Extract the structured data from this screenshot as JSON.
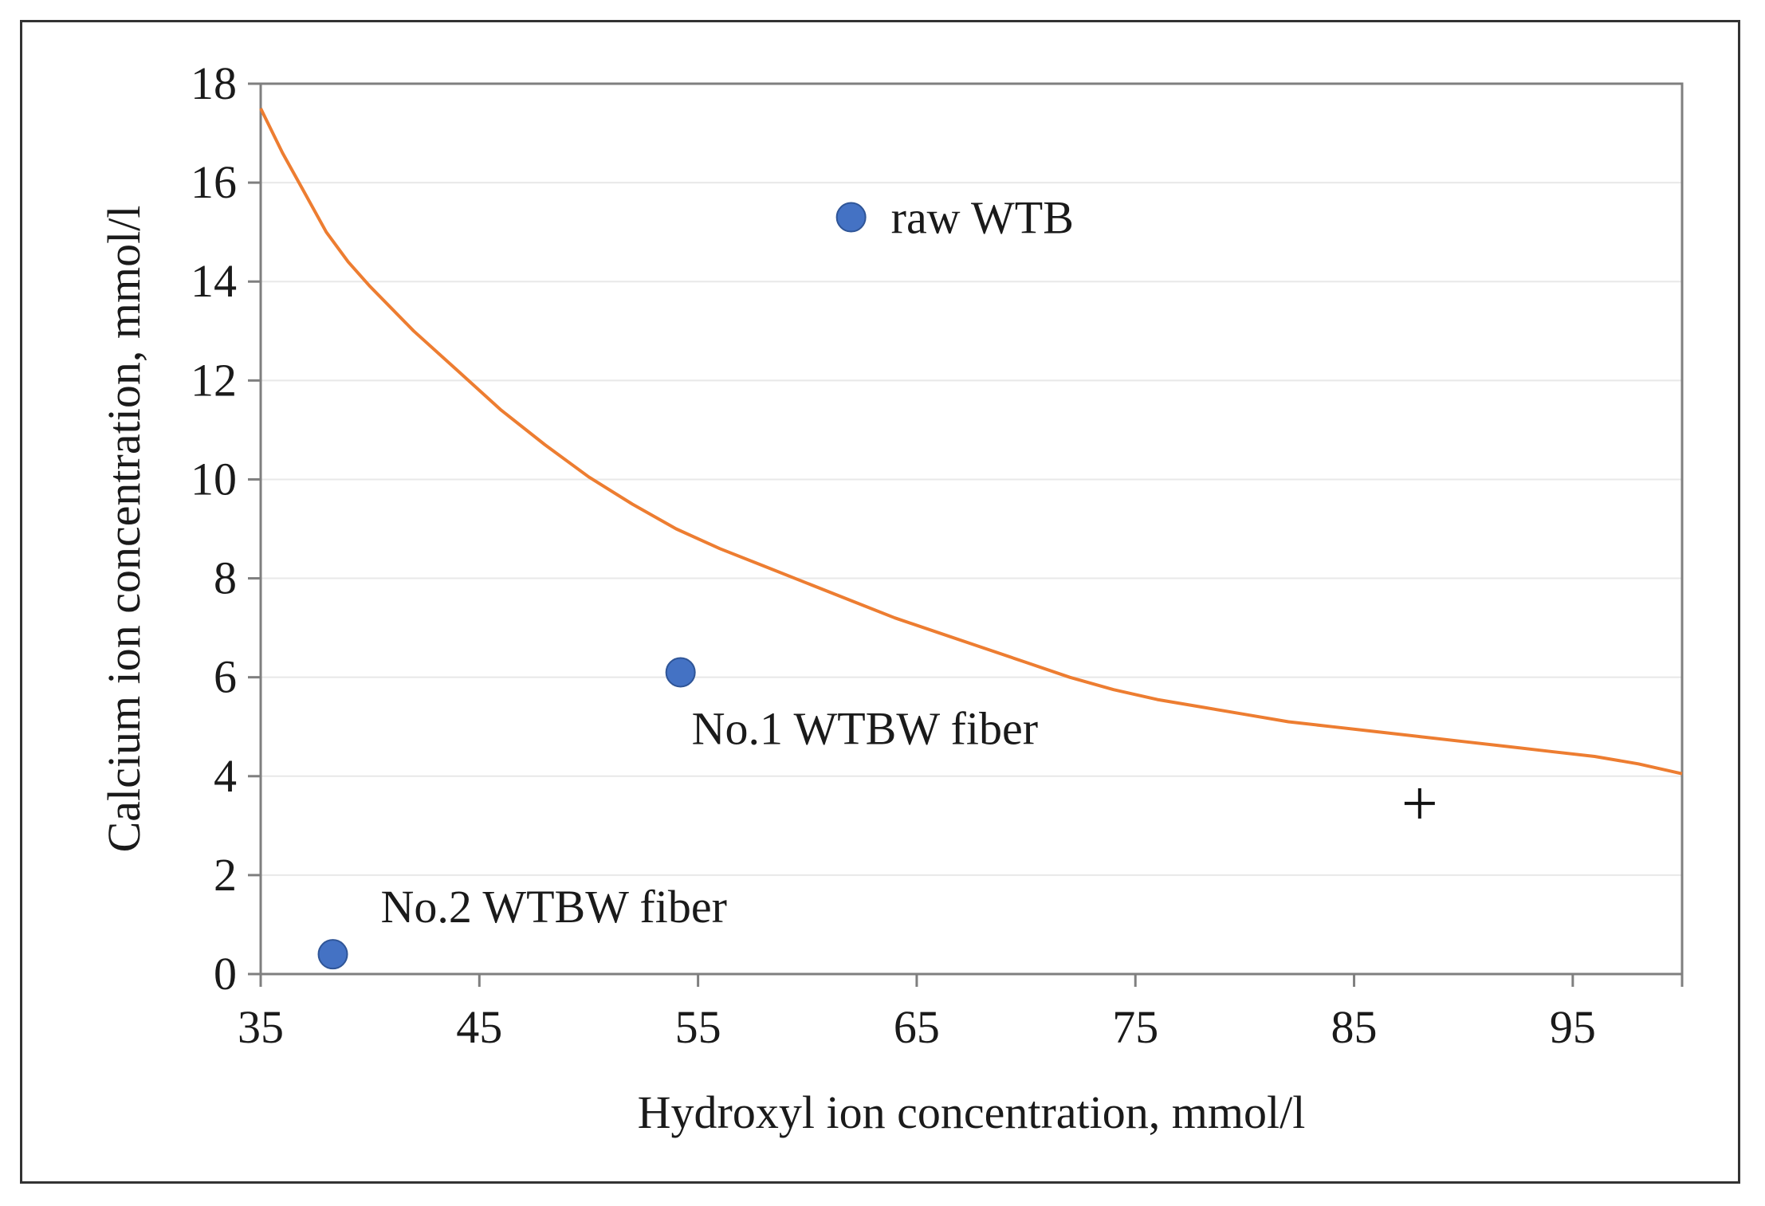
{
  "chart_data": {
    "type": "scatter",
    "title": "",
    "xlabel": "Hydroxyl ion concentration, mmol/l",
    "ylabel": "Calcium ion concentration, mmol/l",
    "xlim": [
      35,
      100
    ],
    "ylim": [
      0,
      18
    ],
    "xticks": [
      35,
      45,
      55,
      65,
      75,
      85,
      95
    ],
    "yticks": [
      0,
      2,
      4,
      6,
      8,
      10,
      12,
      14,
      16,
      18
    ],
    "grid": true,
    "legend": "none",
    "point_color": "#4472c4",
    "curve_color": "#ed7d31",
    "points": [
      {
        "x": 62.0,
        "y": 15.3,
        "label": "raw WTB"
      },
      {
        "x": 54.2,
        "y": 6.1,
        "label": "No.1 WTBW fiber"
      },
      {
        "x": 38.3,
        "y": 0.4,
        "label": "No.2 WTBW fiber"
      }
    ],
    "marker": {
      "x": 88.0,
      "y": 3.45,
      "symbol": "+"
    },
    "curve": {
      "x": [
        35,
        36,
        37,
        38,
        39,
        40,
        42,
        44,
        46,
        48,
        50,
        52,
        54,
        56,
        58,
        60,
        62,
        64,
        66,
        68,
        70,
        72,
        74,
        76,
        78,
        80,
        82,
        84,
        86,
        88,
        90,
        92,
        94,
        96,
        98,
        100
      ],
      "y": [
        17.5,
        16.6,
        15.8,
        15.0,
        14.4,
        13.9,
        13.0,
        12.2,
        11.4,
        10.7,
        10.05,
        9.5,
        9.0,
        8.6,
        8.25,
        7.9,
        7.55,
        7.2,
        6.9,
        6.6,
        6.3,
        6.0,
        5.75,
        5.55,
        5.4,
        5.25,
        5.1,
        5.0,
        4.9,
        4.8,
        4.7,
        4.6,
        4.5,
        4.4,
        4.25,
        4.05
      ]
    }
  }
}
